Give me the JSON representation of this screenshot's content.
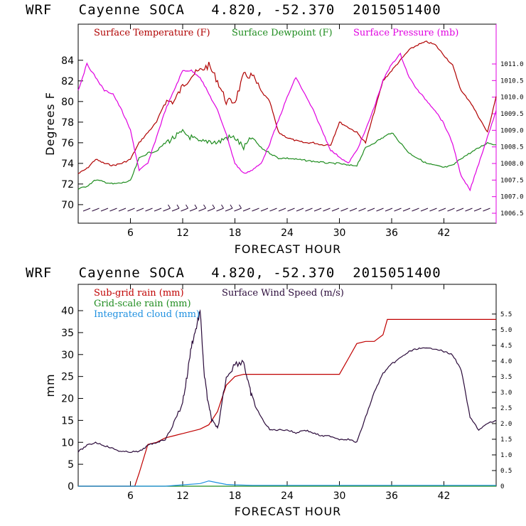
{
  "colors": {
    "temperature": "#b00000",
    "dewpoint": "#1e8c1e",
    "pressure": "#e000e0",
    "subgrid": "#c00000",
    "gridscale": "#1e8c1e",
    "cloud": "#1e90e0",
    "wind": "#2a0a3a"
  },
  "chart_data": [
    {
      "type": "line",
      "title": "WRF   Cayenne SOCA   4.820, -52.370  2015051400",
      "xlabel": "FORECAST HOUR",
      "ylabel": "Degrees F",
      "xlim": [
        0,
        48
      ],
      "xticks": [
        "6",
        "12",
        "18",
        "24",
        "30",
        "36",
        "42"
      ],
      "ylim": [
        68.2,
        87.5
      ],
      "yticks": [
        "70",
        "72",
        "74",
        "76",
        "78",
        "80",
        "82",
        "84"
      ],
      "y2lim": [
        1006.2,
        1012.2
      ],
      "y2ticks": [
        "1006.5",
        "1007.0",
        "1007.5",
        "1008.0",
        "1008.5",
        "1009.0",
        "1009.5",
        "1010.0",
        "1010.5",
        "1011.0"
      ],
      "x": [
        0,
        1,
        2,
        3,
        4,
        5,
        6,
        7,
        8,
        9,
        10,
        11,
        12,
        13,
        14,
        15,
        16,
        17,
        18,
        19,
        20,
        21,
        22,
        23,
        24,
        25,
        26,
        27,
        28,
        29,
        30,
        31,
        32,
        33,
        34,
        35,
        36,
        37,
        38,
        39,
        40,
        41,
        42,
        43,
        44,
        45,
        46,
        47,
        48
      ],
      "series": [
        {
          "name": "Surface Temperature (F)",
          "axis": "left",
          "values": [
            73.0,
            73.5,
            74.4,
            74.0,
            73.8,
            74.0,
            74.4,
            76.0,
            77.0,
            78.0,
            80.0,
            80.0,
            81.5,
            82.5,
            83.0,
            83.5,
            82.0,
            80.0,
            80.0,
            82.5,
            82.5,
            81.0,
            80.0,
            77.0,
            76.5,
            76.2,
            76.0,
            76.0,
            75.8,
            75.8,
            78.0,
            77.5,
            77.0,
            76.0,
            79.0,
            82.0,
            83.0,
            84.0,
            85.0,
            85.5,
            85.8,
            85.5,
            84.5,
            83.5,
            81.0,
            80.0,
            78.5,
            77.0,
            80.5
          ]
        },
        {
          "name": "Surface Dewpoint (F)",
          "axis": "left",
          "values": [
            71.5,
            71.8,
            72.4,
            72.2,
            72.0,
            72.1,
            72.3,
            74.5,
            75.0,
            75.2,
            76.0,
            76.5,
            77.0,
            76.5,
            76.0,
            76.2,
            76.0,
            76.5,
            76.5,
            75.5,
            76.5,
            75.5,
            75.0,
            74.5,
            74.5,
            74.4,
            74.3,
            74.2,
            74.1,
            74.0,
            74.0,
            73.8,
            73.8,
            75.5,
            76.0,
            76.5,
            77.0,
            76.0,
            75.0,
            74.5,
            74.0,
            73.8,
            73.6,
            73.8,
            74.5,
            75.0,
            75.5,
            76.0,
            75.8
          ]
        },
        {
          "name": "Surface Pressure (mb)",
          "axis": "right",
          "values": [
            1010.2,
            1011.0,
            1010.6,
            1010.2,
            1010.1,
            1009.6,
            1009.0,
            1007.8,
            1008.0,
            1008.8,
            1009.6,
            1010.2,
            1010.8,
            1010.8,
            1010.6,
            1010.1,
            1009.6,
            1008.9,
            1008.0,
            1007.7,
            1007.8,
            1008.0,
            1008.6,
            1009.3,
            1010.0,
            1010.6,
            1010.1,
            1009.6,
            1009.0,
            1008.4,
            1008.2,
            1008.0,
            1008.4,
            1009.0,
            1009.7,
            1010.5,
            1011.0,
            1011.3,
            1010.6,
            1010.2,
            1009.9,
            1009.6,
            1009.2,
            1008.6,
            1007.6,
            1007.2,
            1008.0,
            1008.8,
            1009.6
          ]
        }
      ],
      "legend": [
        "Surface Temperature (F)",
        "Surface Dewpoint (F)",
        "Surface Pressure (mb)"
      ]
    },
    {
      "type": "line",
      "title": "WRF   Cayenne SOCA   4.820, -52.370  2015051400",
      "xlabel": "FORECAST HOUR",
      "ylabel": "mm",
      "xlim": [
        0,
        48
      ],
      "xticks": [
        "6",
        "12",
        "18",
        "24",
        "30",
        "36",
        "42"
      ],
      "ylim": [
        0,
        46
      ],
      "yticks": [
        "0",
        "5",
        "10",
        "15",
        "20",
        "25",
        "30",
        "35",
        "40"
      ],
      "y2lim": [
        0,
        6.45
      ],
      "y2ticks": [
        "0",
        "0.5",
        "1.0",
        "1.5",
        "2.0",
        "2.5",
        "3.0",
        "3.5",
        "4.0",
        "4.5",
        "5.0",
        "5.5"
      ],
      "series": [
        {
          "name": "Sub-grid rain (mm)",
          "axis": "left",
          "x": [
            0,
            6.5,
            7,
            8,
            9,
            10,
            11,
            12,
            13,
            14,
            15,
            16,
            17,
            18,
            19,
            24,
            30,
            31,
            32,
            33,
            34,
            35,
            35.5,
            40,
            48
          ],
          "values": [
            0,
            0,
            3,
            9.5,
            10,
            11,
            11.5,
            12,
            12.5,
            13,
            14,
            17,
            23,
            25,
            25.5,
            25.5,
            25.5,
            29,
            32.5,
            33,
            33,
            34.5,
            38,
            38,
            38
          ]
        },
        {
          "name": "Grid-scale rain (mm)",
          "axis": "left",
          "x": [
            0,
            48
          ],
          "values": [
            0,
            0
          ]
        },
        {
          "name": "Integrated cloud (mm)",
          "axis": "left",
          "x": [
            0,
            10,
            12,
            14,
            15,
            16,
            17,
            18,
            20,
            48
          ],
          "values": [
            0,
            0,
            0.3,
            0.6,
            1.2,
            0.8,
            0.4,
            0.3,
            0.2,
            0.2
          ]
        },
        {
          "name": "Surface Wind Speed (m/s)",
          "axis": "right",
          "x": [
            0,
            1,
            2,
            3,
            4,
            5,
            6,
            7,
            8,
            9,
            10,
            11,
            12,
            12.5,
            13,
            13.5,
            14,
            14.5,
            15,
            15.5,
            16,
            17,
            18,
            19,
            19.5,
            20,
            21,
            22,
            23,
            24,
            25,
            26,
            27,
            28,
            29,
            30,
            31,
            32,
            33,
            34,
            35,
            36,
            37,
            38,
            39,
            40,
            41,
            42,
            43,
            44,
            45,
            46,
            47,
            48
          ],
          "values": [
            1.1,
            1.3,
            1.4,
            1.3,
            1.2,
            1.1,
            1.1,
            1.1,
            1.3,
            1.4,
            1.5,
            2.0,
            2.7,
            3.5,
            4.5,
            5.0,
            5.6,
            3.5,
            2.5,
            2.0,
            1.8,
            3.5,
            3.9,
            4.0,
            3.3,
            2.8,
            2.2,
            1.8,
            1.8,
            1.8,
            1.7,
            1.8,
            1.7,
            1.6,
            1.6,
            1.5,
            1.5,
            1.4,
            2.2,
            3.0,
            3.6,
            3.9,
            4.1,
            4.3,
            4.4,
            4.4,
            4.4,
            4.3,
            4.2,
            3.7,
            2.2,
            1.8,
            2.0,
            2.1
          ]
        }
      ],
      "legend": [
        "Sub-grid rain (mm)",
        "Surface Wind Speed (m/s)",
        "Grid-scale rain (mm)",
        "Integrated cloud (mm)"
      ]
    }
  ]
}
